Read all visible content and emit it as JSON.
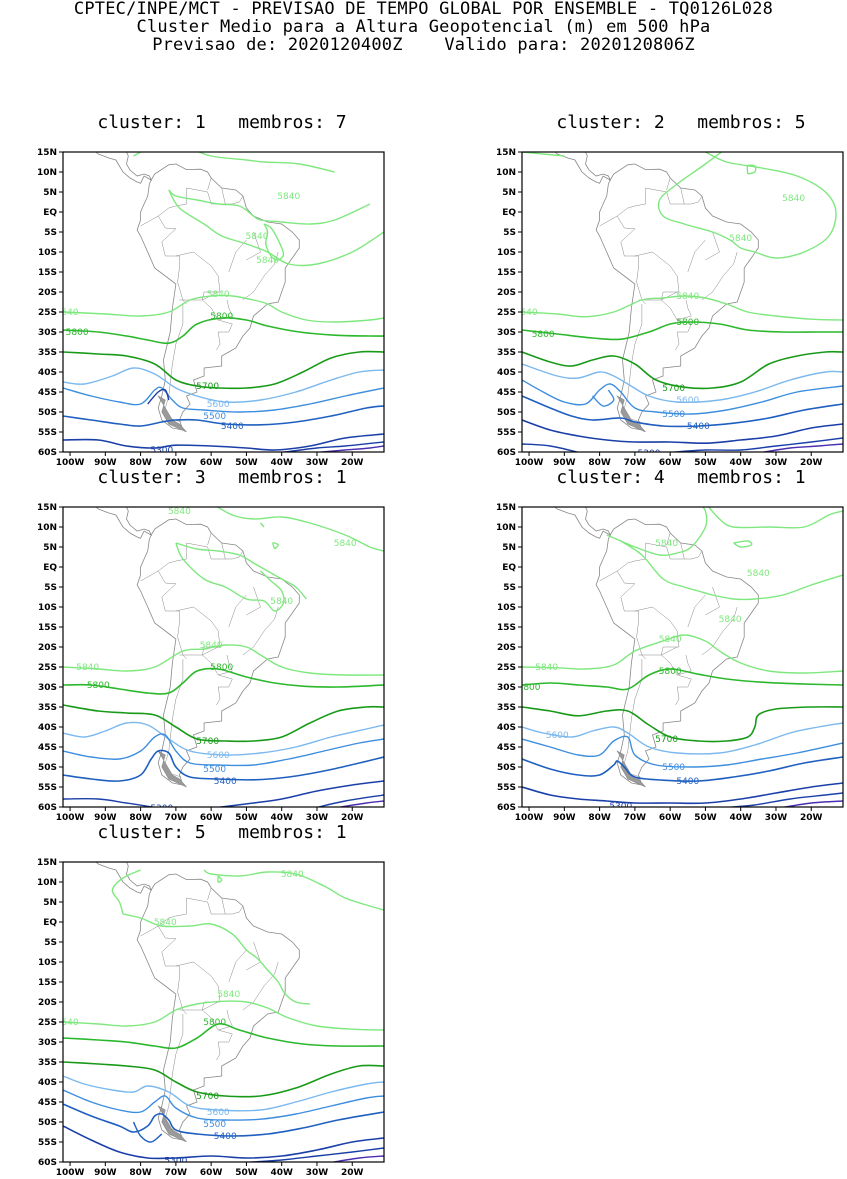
{
  "header": {
    "line1": "CPTEC/INPE/MCT - PREVISAO DE TEMPO GLOBAL POR ENSEMBLE - TQ0126L028",
    "line2": "Cluster Medio para a Altura Geopotencial (m) em 500 hPa",
    "line3": "Previsao de: 2020120400Z    Valido para: 2020120806Z"
  },
  "axes": {
    "lat_labels": [
      "15N",
      "10N",
      "5N",
      "EQ",
      "5S",
      "10S",
      "15S",
      "20S",
      "25S",
      "30S",
      "35S",
      "40S",
      "45S",
      "50S",
      "55S",
      "60S"
    ],
    "lon_labels": [
      "100W",
      "90W",
      "80W",
      "70W",
      "60W",
      "50W",
      "40W",
      "30W",
      "20W"
    ]
  },
  "colors": {
    "c5840": "#7ee87e",
    "c5800": "#2cb82c",
    "c5700": "#189a18",
    "c5600": "#7bb8ee",
    "c5500": "#3e8ede",
    "c5400": "#1f5fc0",
    "c5300": "#1a3fa8",
    "c5200": "#4a2fb0",
    "land": "#888888"
  },
  "panels": [
    {
      "title": "cluster: 1   membros: 7",
      "labels": {
        "l5840a": "5840",
        "l5840b": "5840",
        "l5840c": "5840",
        "l5840d": "5840",
        "l5840e": "540",
        "l5800a": "5800",
        "l5800b": "5800",
        "l5700": "5700",
        "l5600": "5600",
        "l5500": "5500",
        "l5400": "5400",
        "l5300": "5300"
      }
    },
    {
      "title": "cluster: 2   membros: 5",
      "labels": {
        "l5840a": "5840",
        "l5840b": "5840",
        "l5840c": "5840",
        "l5840d": "",
        "l5840e": "540",
        "l5800a": "5800",
        "l5800b": "5800",
        "l5700": "5700",
        "l5600": "5600",
        "l5500": "5500",
        "l5400": "5400",
        "l5300": "5300"
      }
    },
    {
      "title": "cluster: 3   membros: 1",
      "labels": {
        "l5840a": "5840",
        "l5840b": "5840",
        "l5840c": "5840",
        "l5840d": "5840",
        "l5840e": "5840",
        "l5800a": "5800",
        "l5800b": "5800",
        "l5700": "5700",
        "l5600": "5600",
        "l5500": "5500",
        "l5400": "5400",
        "l5300": "5300"
      }
    },
    {
      "title": "cluster: 4   membros: 1",
      "labels": {
        "l5840a": "5840",
        "l5840b": "5840",
        "l5840c": "5840",
        "l5840d": "5840",
        "l5840e": "5840",
        "l5800a": "5800",
        "l5800b": "5800",
        "l5700": "5700",
        "l5600": "5600",
        "l5500": "5500",
        "l5400": "5400",
        "l5300": "5300"
      }
    },
    {
      "title": "cluster: 5   membros: 1",
      "labels": {
        "l5840a": "5840",
        "l5840b": "5840",
        "l5840c": "5840",
        "l5840d": "",
        "l5840e": "540",
        "l5800a": "5800",
        "l5800b": "",
        "l5700": "5700",
        "l5600": "5600",
        "l5500": "5500",
        "l5400": "5400",
        "l5300": "5300"
      }
    }
  ]
}
